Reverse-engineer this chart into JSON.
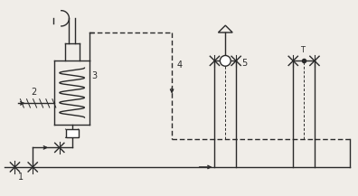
{
  "bg_color": "#f0ede8",
  "line_color": "#2a2a2a",
  "fig_width": 3.96,
  "fig_height": 2.17,
  "dpi": 100,
  "lw": 1.0
}
